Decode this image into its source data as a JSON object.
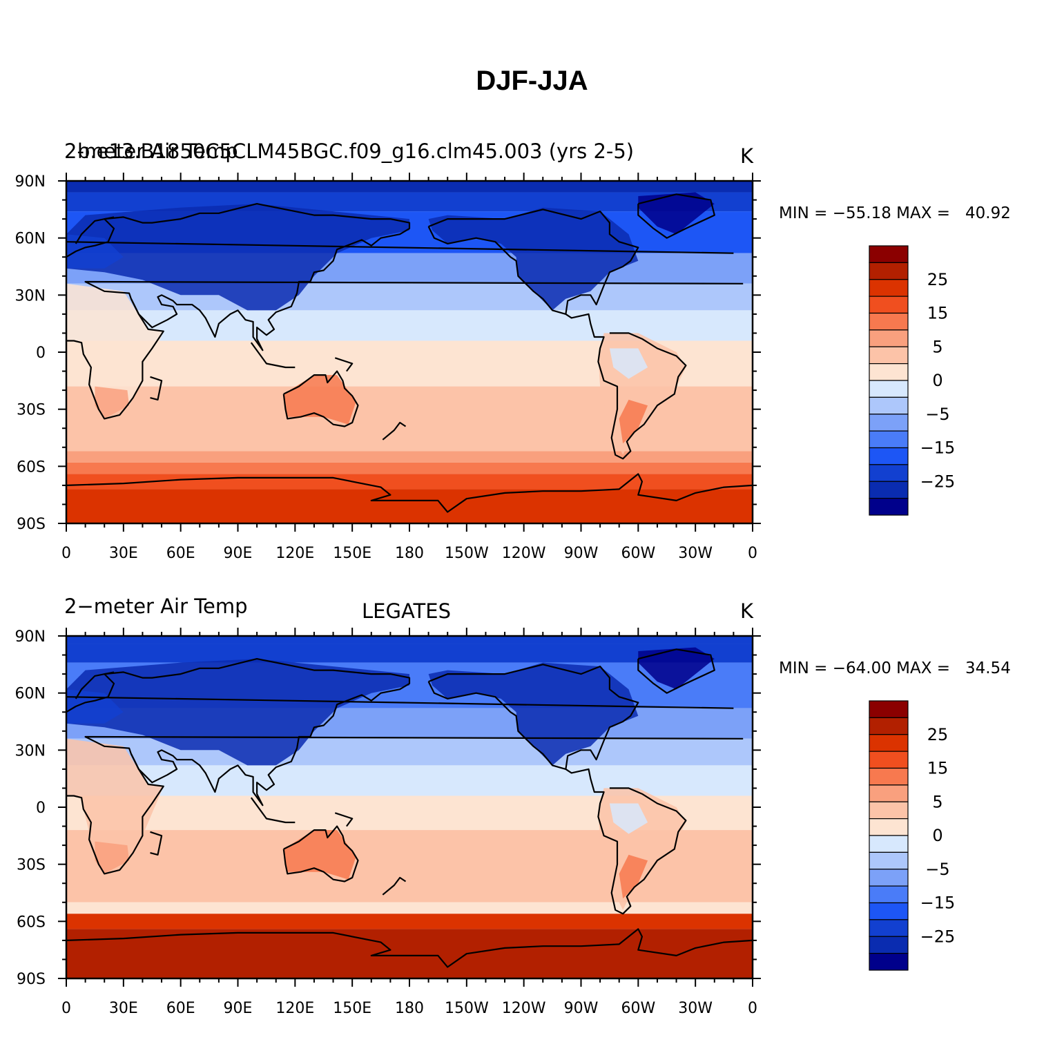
{
  "title": "DJF-JJA",
  "levels": [
    -30,
    -25,
    -20,
    -15,
    -10,
    -5,
    0,
    5,
    10,
    15,
    20,
    25,
    30
  ],
  "colors": [
    "#00008b",
    "#0a2cb0",
    "#1240d0",
    "#1d56f5",
    "#4a7cf8",
    "#7ca1f8",
    "#adc7fb",
    "#d7e8fd",
    "#fde4d2",
    "#fcc3a8",
    "#f9a07e",
    "#f7794f",
    "#f04f1f",
    "#db3300",
    "#b22000",
    "#8b0000"
  ],
  "colorbar_labels": [
    "25",
    "15",
    "5",
    "0",
    "−5",
    "−15",
    "−25"
  ],
  "x_ticks": [
    "0",
    "30E",
    "60E",
    "90E",
    "120E",
    "150E",
    "180",
    "150W",
    "120W",
    "90W",
    "60W",
    "30W",
    "0"
  ],
  "y_ticks": [
    "90N",
    "60N",
    "30N",
    "0",
    "30S",
    "60S",
    "90S"
  ],
  "panels": [
    {
      "left_a": "2-meter Air Temp",
      "left_b": "b.e13.B1850C5CLM45BGC.f09_g16.clm45.003 (yrs 2-5)",
      "center": "",
      "units": "K",
      "min_max": "MIN = −55.18 MAX =   40.92"
    },
    {
      "left_a": "2−meter Air Temp",
      "left_b": "",
      "center": "LEGATES",
      "units": "K",
      "min_max": "MIN = −64.00 MAX =   34.54"
    }
  ]
}
